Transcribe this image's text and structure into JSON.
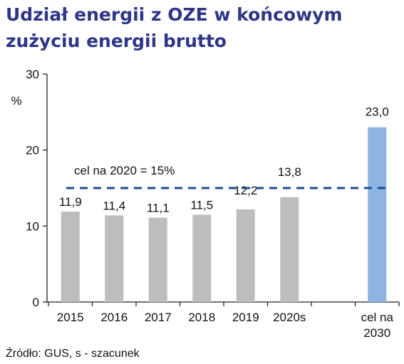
{
  "chart_data": {
    "type": "bar",
    "title": "Udział energii z OZE w końcowym zużyciu energii brutto",
    "ylabel": "%",
    "ylim": [
      0,
      30
    ],
    "yticks": [
      "0",
      "10",
      "20",
      "30"
    ],
    "categories": [
      "2015",
      "2016",
      "2017",
      "2018",
      "2019",
      "2020s",
      "",
      "cel na 2030"
    ],
    "values": [
      11.9,
      11.4,
      11.1,
      11.5,
      12.2,
      13.8,
      null,
      23.0
    ],
    "value_labels": [
      "11,9",
      "11,4",
      "11,1",
      "11,5",
      "12,2",
      "13,8",
      "",
      "23,0"
    ],
    "bar_colors": [
      "#bdbdbd",
      "#bdbdbd",
      "#bdbdbd",
      "#bdbdbd",
      "#bdbdbd",
      "#bdbdbd",
      "#bdbdbd",
      "#8db4e3"
    ],
    "target_line": {
      "value": 15,
      "label": "cel na 2020 = 15%",
      "color": "#1f4e8c",
      "style": "dashed"
    },
    "grid": false,
    "legend": "none",
    "source": "Źródło: GUS, s - szacunek"
  }
}
